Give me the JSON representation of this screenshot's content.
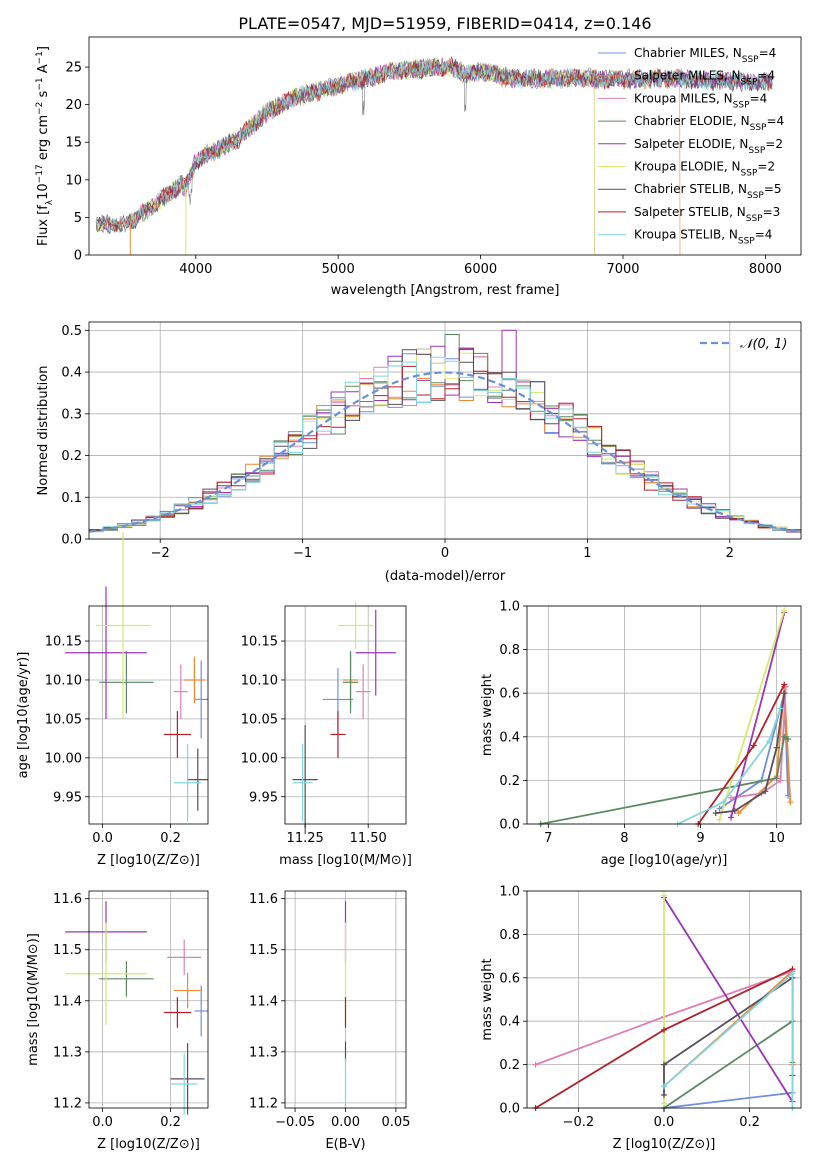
{
  "figure": {
    "title": "PLATE=0547, MJD=51959, FIBERID=0414, z=0.146"
  },
  "colors": {
    "Chabrier MILES": "#6f8fdc",
    "Salpeter MILES": "#ee8833",
    "Kroupa MILES": "#e07fb6",
    "Chabrier ELODIE": "#5b8a62",
    "Salpeter ELODIE": "#9b34b8",
    "Kroupa ELODIE": "#d4ea6e",
    "Chabrier STELIB": "#5a4f5a",
    "Salpeter STELIB": "#b0202a",
    "Kroupa STELIB": "#84d6de",
    "gaussian": "#6a91d6"
  },
  "chart_data": [
    {
      "id": "spectrum",
      "type": "line",
      "title": "PLATE=0547, MJD=51959, FIBERID=0414, z=0.146",
      "xlabel": "wavelength [Angstrom, rest frame]",
      "ylabel": "Flux [f_λ 10^-17 erg cm^-2 s^-1 A^-1]",
      "xlim": [
        3250,
        8250
      ],
      "ylim": [
        0,
        29
      ],
      "xticks": [
        "4000",
        "5000",
        "6000",
        "7000",
        "8000"
      ],
      "yticks": [
        "0",
        "5",
        "10",
        "15",
        "20",
        "25"
      ],
      "grid": false,
      "legend": "top-right",
      "continuum": {
        "x": [
          3300,
          3450,
          3550,
          3700,
          3900,
          3930,
          4000,
          4100,
          4300,
          4500,
          4700,
          5000,
          5200,
          5400,
          5600,
          5800,
          5900,
          6000,
          6200,
          6500,
          6800,
          7000,
          7300,
          7600,
          8000
        ],
        "y": [
          4.2,
          4.0,
          4.5,
          6.5,
          9.5,
          9.0,
          12.5,
          13.5,
          15.5,
          19.0,
          21.0,
          22.5,
          23.5,
          24.5,
          24.8,
          25.0,
          24.0,
          24.5,
          23.5,
          23.5,
          23.5,
          23.3,
          23.5,
          23.2,
          23.0
        ]
      },
      "series": [
        {
          "name": "Chabrier MILES, N_SSP=4",
          "label_main": "Chabrier MILES, N",
          "label_sub": "SSP",
          "label_tail": "=4"
        },
        {
          "name": "Salpeter MILES, N_SSP=4",
          "label_main": "Salpeter MILES, N",
          "label_sub": "SSP",
          "label_tail": "=4"
        },
        {
          "name": "Kroupa MILES, N_SSP=4",
          "label_main": "Kroupa MILES, N",
          "label_sub": "SSP",
          "label_tail": "=4"
        },
        {
          "name": "Chabrier ELODIE, N_SSP=4",
          "label_main": "Chabrier ELODIE, N",
          "label_sub": "SSP",
          "label_tail": "=4"
        },
        {
          "name": "Salpeter ELODIE, N_SSP=2",
          "label_main": "Salpeter ELODIE, N",
          "label_sub": "SSP",
          "label_tail": "=2"
        },
        {
          "name": "Kroupa ELODIE, N_SSP=2",
          "label_main": "Kroupa ELODIE, N",
          "label_sub": "SSP",
          "label_tail": "=2"
        },
        {
          "name": "Chabrier STELIB, N_SSP=5",
          "label_main": "Chabrier STELIB, N",
          "label_sub": "SSP",
          "label_tail": "=5"
        },
        {
          "name": "Salpeter STELIB, N_SSP=3",
          "label_main": "Salpeter STELIB, N",
          "label_sub": "SSP",
          "label_tail": "=3"
        },
        {
          "name": "Kroupa STELIB, N_SSP=4",
          "label_main": "Kroupa STELIB, N",
          "label_sub": "SSP",
          "label_tail": "=4"
        }
      ]
    },
    {
      "id": "residuals",
      "type": "histogram",
      "xlabel": "(data-model)/error",
      "ylabel": "Normed distribution",
      "xlim": [
        -2.5,
        2.5
      ],
      "ylim": [
        0,
        0.52
      ],
      "xticks": [
        "−2",
        "−1",
        "0",
        "1",
        "2"
      ],
      "yticks": [
        "0.0",
        "0.1",
        "0.2",
        "0.3",
        "0.4",
        "0.5"
      ],
      "grid": true,
      "legend": "top-right",
      "legend_label": "𝒩(0, 1)",
      "bin_width": 0.1
    },
    {
      "id": "age_vs_Z",
      "type": "scatter",
      "xlabel": "Z [log10(Z/Z⊙)]",
      "ylabel": "age [log10(age/yr)]",
      "xlim": [
        -0.04,
        0.31
      ],
      "ylim": [
        9.915,
        10.195
      ],
      "xticks": [
        "0.0",
        "0.2"
      ],
      "yticks": [
        "9.95",
        "10.00",
        "10.05",
        "10.10",
        "10.15"
      ],
      "grid": true,
      "points": [
        {
          "series": "Chabrier MILES",
          "x": 0.29,
          "y": 10.075,
          "xerr": 0.02,
          "yerr": 0.05
        },
        {
          "series": "Salpeter MILES",
          "x": 0.27,
          "y": 10.1,
          "xerr": 0.03,
          "yerr": 0.03
        },
        {
          "series": "Kroupa MILES",
          "x": 0.23,
          "y": 10.085,
          "xerr": 0.02,
          "yerr": 0.035
        },
        {
          "series": "Chabrier ELODIE",
          "x": 0.07,
          "y": 10.097,
          "xerr": 0.08,
          "yerr": 0.04
        },
        {
          "series": "Salpeter ELODIE",
          "x": 0.01,
          "y": 10.135,
          "xerr": 0.12,
          "yerr": 0.085
        },
        {
          "series": "Kroupa ELODIE",
          "x": 0.06,
          "y": 10.17,
          "xerr": 0.08,
          "yerr": 0.12
        },
        {
          "series": "Chabrier STELIB",
          "x": 0.28,
          "y": 9.972,
          "xerr": 0.03,
          "yerr": 0.04
        },
        {
          "series": "Salpeter STELIB",
          "x": 0.22,
          "y": 10.03,
          "xerr": 0.04,
          "yerr": 0.03
        },
        {
          "series": "Kroupa STELIB",
          "x": 0.25,
          "y": 9.968,
          "xerr": 0.04,
          "yerr": 0.05
        }
      ]
    },
    {
      "id": "age_vs_mass",
      "type": "scatter",
      "xlabel": "mass [log10(M/M⊙)]",
      "ylabel": "",
      "xlim": [
        11.17,
        11.65
      ],
      "ylim": [
        9.915,
        10.195
      ],
      "xticks": [
        "11.25",
        "11.50"
      ],
      "yticks": [
        "9.95",
        "10.00",
        "10.05",
        "10.10",
        "10.15"
      ],
      "grid": true,
      "points": [
        {
          "series": "Chabrier MILES",
          "x": 11.38,
          "y": 10.075,
          "xerr": 0.06,
          "yerr": 0.04
        },
        {
          "series": "Salpeter MILES",
          "x": 11.43,
          "y": 10.1,
          "xerr": 0.03,
          "yerr": 0.035
        },
        {
          "series": "Kroupa MILES",
          "x": 11.48,
          "y": 10.085,
          "xerr": 0.03,
          "yerr": 0.035
        },
        {
          "series": "Chabrier ELODIE",
          "x": 11.43,
          "y": 10.097,
          "xerr": 0.03,
          "yerr": 0.04
        },
        {
          "series": "Salpeter ELODIE",
          "x": 11.53,
          "y": 10.135,
          "xerr": 0.08,
          "yerr": 0.055
        },
        {
          "series": "Kroupa ELODIE",
          "x": 11.45,
          "y": 10.17,
          "xerr": 0.07,
          "yerr": 0.03
        },
        {
          "series": "Chabrier STELIB",
          "x": 11.25,
          "y": 9.972,
          "xerr": 0.05,
          "yerr": 0.07
        },
        {
          "series": "Salpeter STELIB",
          "x": 11.38,
          "y": 10.03,
          "xerr": 0.03,
          "yerr": 0.03
        },
        {
          "series": "Kroupa STELIB",
          "x": 11.24,
          "y": 9.968,
          "xerr": 0.04,
          "yerr": 0.05
        }
      ]
    },
    {
      "id": "mass_weight_vs_age",
      "type": "line",
      "xlabel": "age [log10(age/yr)]",
      "ylabel": "mass weight",
      "xlim": [
        6.72,
        10.32
      ],
      "ylim": [
        0,
        1
      ],
      "xticks": [
        "7",
        "8",
        "9",
        "10"
      ],
      "yticks": [
        "0.0",
        "0.2",
        "0.4",
        "0.6",
        "0.8",
        "1.0"
      ],
      "grid": true,
      "series": [
        {
          "series": "Chabrier MILES",
          "x": [
            9.25,
            9.8,
            10.1,
            10.15
          ],
          "y": [
            0.07,
            0.2,
            0.6,
            0.13
          ]
        },
        {
          "series": "Salpeter MILES",
          "x": [
            9.5,
            10.0,
            10.1,
            10.18
          ],
          "y": [
            0.05,
            0.22,
            0.63,
            0.1
          ]
        },
        {
          "series": "Kroupa MILES",
          "x": [
            9.4,
            9.8,
            10.05,
            10.12
          ],
          "y": [
            0.12,
            0.14,
            0.2,
            0.63
          ]
        },
        {
          "series": "Chabrier ELODIE",
          "x": [
            6.9,
            10.0,
            10.1,
            10.15
          ],
          "y": [
            0.0,
            0.21,
            0.4,
            0.39
          ]
        },
        {
          "series": "Salpeter ELODIE",
          "x": [
            9.4,
            10.1
          ],
          "y": [
            0.03,
            0.97
          ]
        },
        {
          "series": "Kroupa ELODIE",
          "x": [
            9.25,
            10.1
          ],
          "y": [
            0.02,
            0.98
          ]
        },
        {
          "series": "Chabrier STELIB",
          "x": [
            9.2,
            9.45,
            9.85,
            10.0,
            10.1
          ],
          "y": [
            0.05,
            0.06,
            0.15,
            0.35,
            0.6
          ]
        },
        {
          "series": "Salpeter STELIB",
          "x": [
            8.97,
            9.7,
            10.1
          ],
          "y": [
            0.0,
            0.36,
            0.64
          ]
        },
        {
          "series": "Kroupa STELIB",
          "x": [
            8.7,
            9.3,
            9.9,
            10.05
          ],
          "y": [
            0.0,
            0.1,
            0.38,
            0.53
          ]
        }
      ]
    },
    {
      "id": "mass_vs_Z",
      "type": "scatter",
      "xlabel": "Z [log10(Z/Z⊙)]",
      "ylabel": "mass [log10(M/M⊙)]",
      "xlim": [
        -0.04,
        0.31
      ],
      "ylim": [
        11.19,
        11.615
      ],
      "xticks": [
        "0.0",
        "0.2"
      ],
      "yticks": [
        "11.2",
        "11.3",
        "11.4",
        "11.5",
        "11.6"
      ],
      "grid": true,
      "points": [
        {
          "series": "Chabrier MILES",
          "x": 0.29,
          "y": 11.38,
          "xerr": 0.02,
          "yerr": 0.05
        },
        {
          "series": "Salpeter MILES",
          "x": 0.25,
          "y": 11.42,
          "xerr": 0.04,
          "yerr": 0.035
        },
        {
          "series": "Kroupa MILES",
          "x": 0.24,
          "y": 11.485,
          "xerr": 0.05,
          "yerr": 0.035
        },
        {
          "series": "Chabrier ELODIE",
          "x": 0.07,
          "y": 11.443,
          "xerr": 0.08,
          "yerr": 0.035
        },
        {
          "series": "Salpeter ELODIE",
          "x": 0.01,
          "y": 11.535,
          "xerr": 0.12,
          "yerr": 0.06
        },
        {
          "series": "Kroupa ELODIE",
          "x": 0.01,
          "y": 11.453,
          "xerr": 0.12,
          "yerr": 0.1
        },
        {
          "series": "Chabrier STELIB",
          "x": 0.25,
          "y": 11.247,
          "xerr": 0.05,
          "yerr": 0.07
        },
        {
          "series": "Salpeter STELIB",
          "x": 0.22,
          "y": 11.377,
          "xerr": 0.04,
          "yerr": 0.03
        },
        {
          "series": "Kroupa STELIB",
          "x": 0.24,
          "y": 11.237,
          "xerr": 0.04,
          "yerr": 0.06
        }
      ]
    },
    {
      "id": "mass_vs_EBV",
      "type": "scatter",
      "xlabel": "E(B-V)",
      "ylabel": "",
      "xlim": [
        -0.06,
        0.06
      ],
      "ylim": [
        11.19,
        11.615
      ],
      "xticks": [
        "−0.05",
        "0.00",
        "0.05"
      ],
      "yticks": [
        "11.2",
        "11.3",
        "11.4",
        "11.5",
        "11.6"
      ],
      "grid": true,
      "points": [
        {
          "series": "Salpeter ELODIE",
          "x": 0.0,
          "y": 11.535,
          "xerr": 0.0,
          "yerr": 0.06
        },
        {
          "series": "Kroupa ELODIE",
          "x": 0.0,
          "y": 11.453,
          "xerr": 0.0,
          "yerr": 0.1
        },
        {
          "series": "Salpeter STELIB",
          "x": 0.0,
          "y": 11.377,
          "xerr": 0.0,
          "yerr": 0.03
        },
        {
          "series": "Chabrier STELIB",
          "x": 0.0,
          "y": 11.3,
          "xerr": 0.0,
          "yerr": 0.02
        },
        {
          "series": "Kroupa STELIB",
          "x": 0.0,
          "y": 11.237,
          "xerr": 0.0,
          "yerr": 0.05
        }
      ]
    },
    {
      "id": "mass_weight_vs_Z",
      "type": "line",
      "xlabel": "Z [log10(Z/Z⊙)]",
      "ylabel": "mass weight",
      "xlim": [
        -0.32,
        0.32
      ],
      "ylim": [
        0,
        1
      ],
      "xticks": [
        "−0.2",
        "0.0",
        "0.2"
      ],
      "yticks": [
        "0.0",
        "0.2",
        "0.4",
        "0.6",
        "0.8",
        "1.0"
      ],
      "grid": true,
      "series": [
        {
          "series": "Chabrier MILES",
          "x": [
            0.0,
            0.3,
            0.3
          ],
          "y": [
            0.0,
            0.07,
            0.6
          ]
        },
        {
          "series": "Salpeter MILES",
          "x": [
            0.0,
            0.3,
            0.3
          ],
          "y": [
            0.1,
            0.63,
            0.2
          ]
        },
        {
          "series": "Kroupa MILES",
          "x": [
            -0.3,
            0.0,
            0.3
          ],
          "y": [
            0.2,
            0.42,
            0.63
          ]
        },
        {
          "series": "Chabrier ELODIE",
          "x": [
            0.0,
            0.3,
            0.3
          ],
          "y": [
            0.0,
            0.4,
            0.21
          ]
        },
        {
          "series": "Salpeter ELODIE",
          "x": [
            0.0,
            0.3
          ],
          "y": [
            0.97,
            0.03
          ]
        },
        {
          "series": "Kroupa ELODIE",
          "x": [
            0.0,
            0.0
          ],
          "y": [
            0.98,
            0.02
          ]
        },
        {
          "series": "Chabrier STELIB",
          "x": [
            0.0,
            0.0,
            0.3,
            0.3
          ],
          "y": [
            0.06,
            0.2,
            0.6,
            0.15
          ]
        },
        {
          "series": "Salpeter STELIB",
          "x": [
            -0.3,
            0.0,
            0.3
          ],
          "y": [
            0.0,
            0.36,
            0.64
          ]
        },
        {
          "series": "Kroupa STELIB",
          "x": [
            0.0,
            0.3,
            0.3
          ],
          "y": [
            0.1,
            0.62,
            0.0
          ]
        }
      ]
    }
  ]
}
